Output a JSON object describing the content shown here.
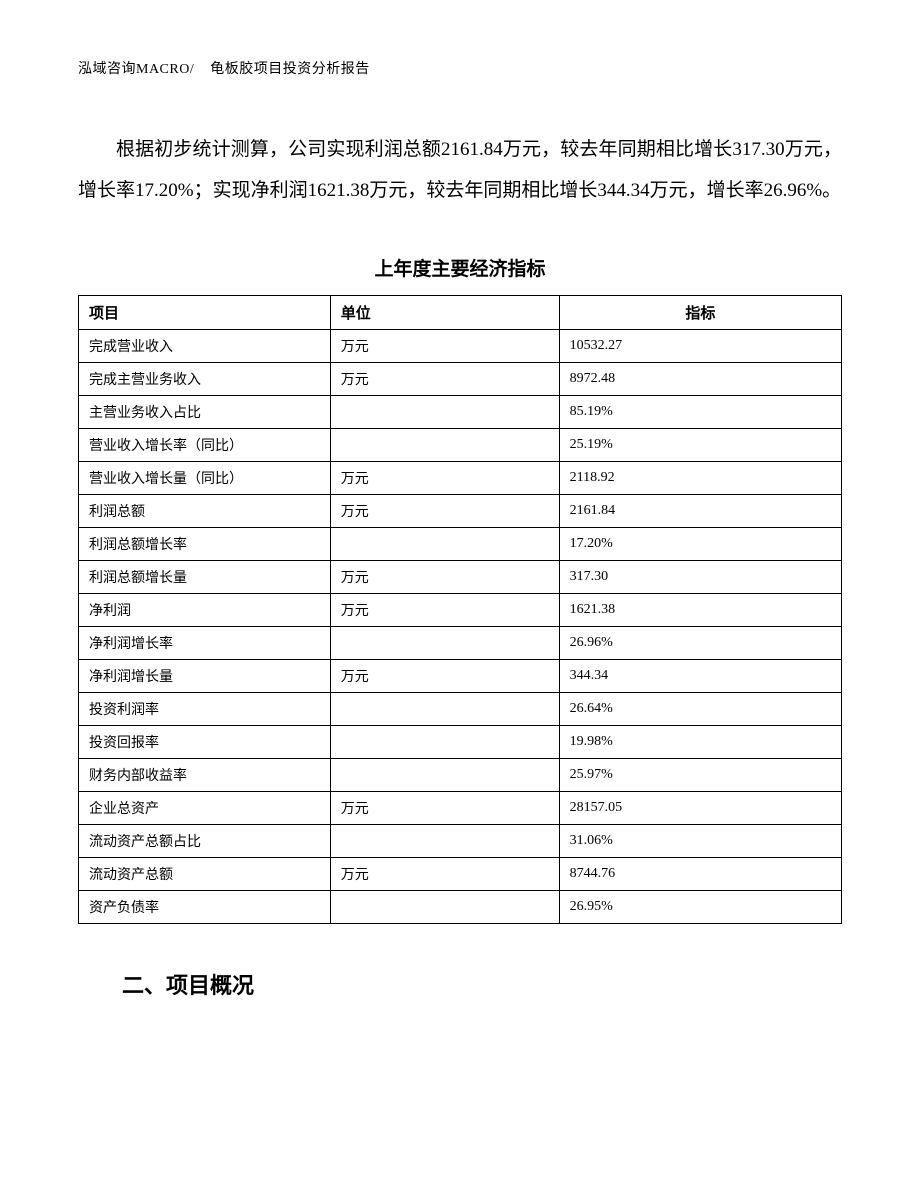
{
  "header": {
    "company": "泓域咨询MACRO/",
    "doc_title": "龟板胶项目投资分析报告"
  },
  "paragraph": "根据初步统计测算，公司实现利润总额2161.84万元，较去年同期相比增长317.30万元，增长率17.20%；实现净利润1621.38万元，较去年同期相比增长344.34万元，增长率26.96%。",
  "table": {
    "title": "上年度主要经济指标",
    "columns": {
      "project": "项目",
      "unit": "单位",
      "metric": "指标"
    },
    "rows": [
      {
        "project": "完成营业收入",
        "unit": "万元",
        "metric": "10532.27"
      },
      {
        "project": "完成主营业务收入",
        "unit": "万元",
        "metric": "8972.48"
      },
      {
        "project": "主营业务收入占比",
        "unit": "",
        "metric": "85.19%"
      },
      {
        "project": "营业收入增长率（同比）",
        "unit": "",
        "metric": "25.19%"
      },
      {
        "project": "营业收入增长量（同比）",
        "unit": "万元",
        "metric": "2118.92"
      },
      {
        "project": "利润总额",
        "unit": "万元",
        "metric": "2161.84"
      },
      {
        "project": "利润总额增长率",
        "unit": "",
        "metric": "17.20%"
      },
      {
        "project": "利润总额增长量",
        "unit": "万元",
        "metric": "317.30"
      },
      {
        "project": "净利润",
        "unit": "万元",
        "metric": "1621.38"
      },
      {
        "project": "净利润增长率",
        "unit": "",
        "metric": "26.96%"
      },
      {
        "project": "净利润增长量",
        "unit": "万元",
        "metric": "344.34"
      },
      {
        "project": "投资利润率",
        "unit": "",
        "metric": "26.64%"
      },
      {
        "project": "投资回报率",
        "unit": "",
        "metric": "19.98%"
      },
      {
        "project": "财务内部收益率",
        "unit": "",
        "metric": "25.97%"
      },
      {
        "project": "企业总资产",
        "unit": "万元",
        "metric": "28157.05"
      },
      {
        "project": "流动资产总额占比",
        "unit": "",
        "metric": "31.06%"
      },
      {
        "project": "流动资产总额",
        "unit": "万元",
        "metric": "8744.76"
      },
      {
        "project": "资产负债率",
        "unit": "",
        "metric": "26.95%"
      }
    ]
  },
  "section_heading": "二、项目概况"
}
